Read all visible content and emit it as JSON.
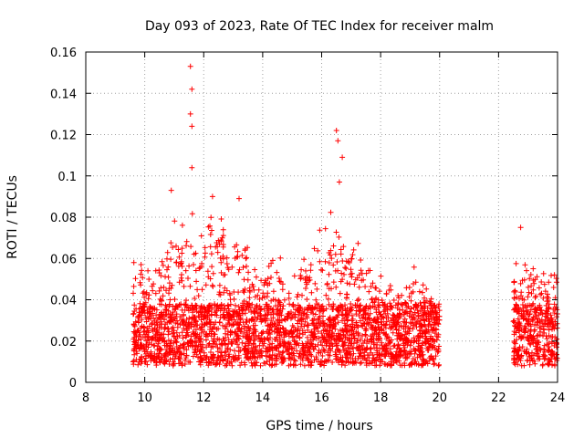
{
  "chart_data": {
    "type": "scatter",
    "title": "Day 093 of 2023, Rate Of TEC Index for receiver malm",
    "xlabel": "GPS time / hours",
    "ylabel": "ROTI / TECUs",
    "xlim": [
      8,
      24
    ],
    "ylim": [
      0,
      0.16
    ],
    "xticks": [
      "8",
      "10",
      "12",
      "14",
      "16",
      "18",
      "20",
      "22",
      "24"
    ],
    "yticks": [
      "0",
      "0.02",
      "0.04",
      "0.06",
      "0.08",
      "0.1",
      "0.12",
      "0.14",
      "0.16"
    ],
    "grid": true,
    "marker": "+",
    "color": "#ff0000",
    "data_spans_hours": [
      [
        9.6,
        20.0
      ],
      [
        22.5,
        24.0
      ]
    ],
    "notable_points": [
      {
        "x": 11.55,
        "y": 0.153
      },
      {
        "x": 11.6,
        "y": 0.142
      },
      {
        "x": 11.55,
        "y": 0.13
      },
      {
        "x": 11.6,
        "y": 0.124
      },
      {
        "x": 11.6,
        "y": 0.104
      },
      {
        "x": 16.5,
        "y": 0.122
      },
      {
        "x": 16.55,
        "y": 0.117
      },
      {
        "x": 16.7,
        "y": 0.109
      },
      {
        "x": 16.6,
        "y": 0.097
      },
      {
        "x": 12.3,
        "y": 0.09
      },
      {
        "x": 10.9,
        "y": 0.093
      },
      {
        "x": 13.2,
        "y": 0.089
      },
      {
        "x": 22.75,
        "y": 0.075
      }
    ]
  }
}
